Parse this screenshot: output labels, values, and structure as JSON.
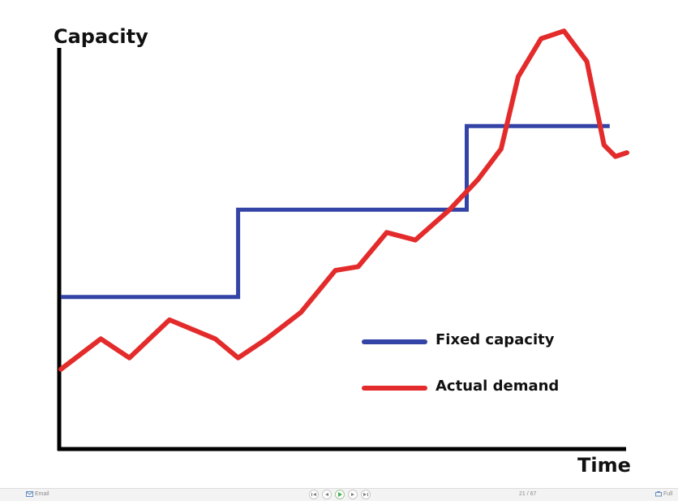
{
  "chart_data": {
    "type": "line",
    "title": "",
    "xlabel": "Time",
    "ylabel": "Capacity",
    "xlim": [
      0,
      100
    ],
    "ylim": [
      0,
      100
    ],
    "grid": false,
    "legend": "lower-right",
    "series": [
      {
        "name": "Fixed capacity",
        "color": "#3344a6",
        "step": true,
        "x": [
          0,
          31,
          31,
          71,
          71,
          96
        ],
        "y": [
          37,
          37,
          60,
          60,
          82,
          82
        ]
      },
      {
        "name": "Actual demand",
        "color": "#e32b2b",
        "step": false,
        "x": [
          0,
          7,
          12,
          19,
          27,
          31,
          36,
          42,
          48,
          52,
          57,
          62,
          68,
          73,
          77,
          80,
          84,
          88,
          92,
          95,
          97,
          99
        ],
        "y": [
          18,
          26,
          21,
          31,
          26,
          21,
          26,
          33,
          44,
          45,
          54,
          52,
          60,
          68,
          76,
          95,
          105,
          107,
          99,
          77,
          74,
          75
        ]
      }
    ]
  },
  "footer": {
    "email_label": "Email",
    "slide_counter": "21 / 67",
    "full_label": "Full",
    "colors": {
      "play": "#4caf50",
      "controls": "#7a7a7a"
    }
  }
}
